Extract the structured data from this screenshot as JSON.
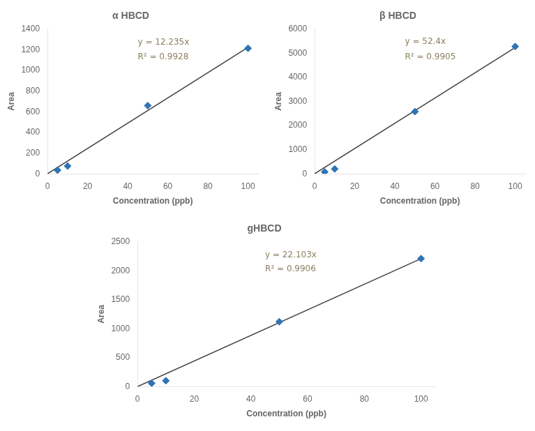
{
  "chart_data": [
    {
      "type": "scatter",
      "title": "α HBCD",
      "xlabel": "Concentration (ppb)",
      "ylabel": "Area",
      "xlim": [
        0,
        105
      ],
      "xticks": [
        0,
        20,
        40,
        60,
        80,
        100
      ],
      "ylim": [
        0,
        1400
      ],
      "yticks": [
        0,
        200,
        400,
        600,
        800,
        1000,
        1200,
        1400
      ],
      "grid": false,
      "series": [
        {
          "type": "scatter",
          "color": "#2E74B5",
          "marker": "diamond",
          "x": [
            5,
            10,
            50,
            100
          ],
          "values": [
            35,
            75,
            660,
            1215
          ]
        },
        {
          "type": "line",
          "color": "#404040",
          "line_style": "solid",
          "x": [
            0,
            100
          ],
          "values": [
            0,
            1223.5
          ]
        }
      ],
      "annotations": [
        {
          "text": "y = 12.235x",
          "x": 45,
          "y": 1230,
          "color": "#8B8060"
        },
        {
          "text": "R² = 0.9928",
          "x": 45,
          "y": 1090,
          "color": "#8B8060"
        }
      ]
    },
    {
      "type": "scatter",
      "title": "β HBCD",
      "xlabel": "Concentration (ppb)",
      "ylabel": "Area",
      "xlim": [
        0,
        105
      ],
      "xticks": [
        0,
        20,
        40,
        60,
        80,
        100
      ],
      "ylim": [
        0,
        6000
      ],
      "yticks": [
        0,
        1000,
        2000,
        3000,
        4000,
        5000,
        6000
      ],
      "grid": false,
      "series": [
        {
          "type": "scatter",
          "color": "#2E74B5",
          "marker": "diamond",
          "x": [
            5,
            10,
            50,
            100
          ],
          "values": [
            75,
            200,
            2580,
            5280
          ]
        },
        {
          "type": "line",
          "color": "#404040",
          "line_style": "solid",
          "x": [
            0,
            100
          ],
          "values": [
            0,
            5240
          ]
        }
      ],
      "annotations": [
        {
          "text": "y = 52.4x",
          "x": 45,
          "y": 5300,
          "color": "#8B8060"
        },
        {
          "text": "R² = 0.9905",
          "x": 45,
          "y": 4680,
          "color": "#8B8060"
        }
      ]
    },
    {
      "type": "scatter",
      "title": "gHBCD",
      "xlabel": "Concentration (ppb)",
      "ylabel": "Area",
      "xlim": [
        0,
        105
      ],
      "xticks": [
        0,
        20,
        40,
        60,
        80,
        100
      ],
      "ylim": [
        0,
        2500
      ],
      "yticks": [
        0,
        500,
        1000,
        1500,
        2000,
        2500
      ],
      "grid": false,
      "series": [
        {
          "type": "scatter",
          "color": "#2E74B5",
          "marker": "diamond",
          "x": [
            5,
            10,
            50,
            100
          ],
          "values": [
            55,
            100,
            1120,
            2210
          ]
        },
        {
          "type": "line",
          "color": "#404040",
          "line_style": "solid",
          "x": [
            0,
            100
          ],
          "values": [
            0,
            2210.3
          ]
        }
      ],
      "annotations": [
        {
          "text": "y = 22.103x",
          "x": 45,
          "y": 2200,
          "color": "#8B8060"
        },
        {
          "text": "R² = 0.9906",
          "x": 45,
          "y": 1960,
          "color": "#8B8060"
        }
      ]
    }
  ]
}
